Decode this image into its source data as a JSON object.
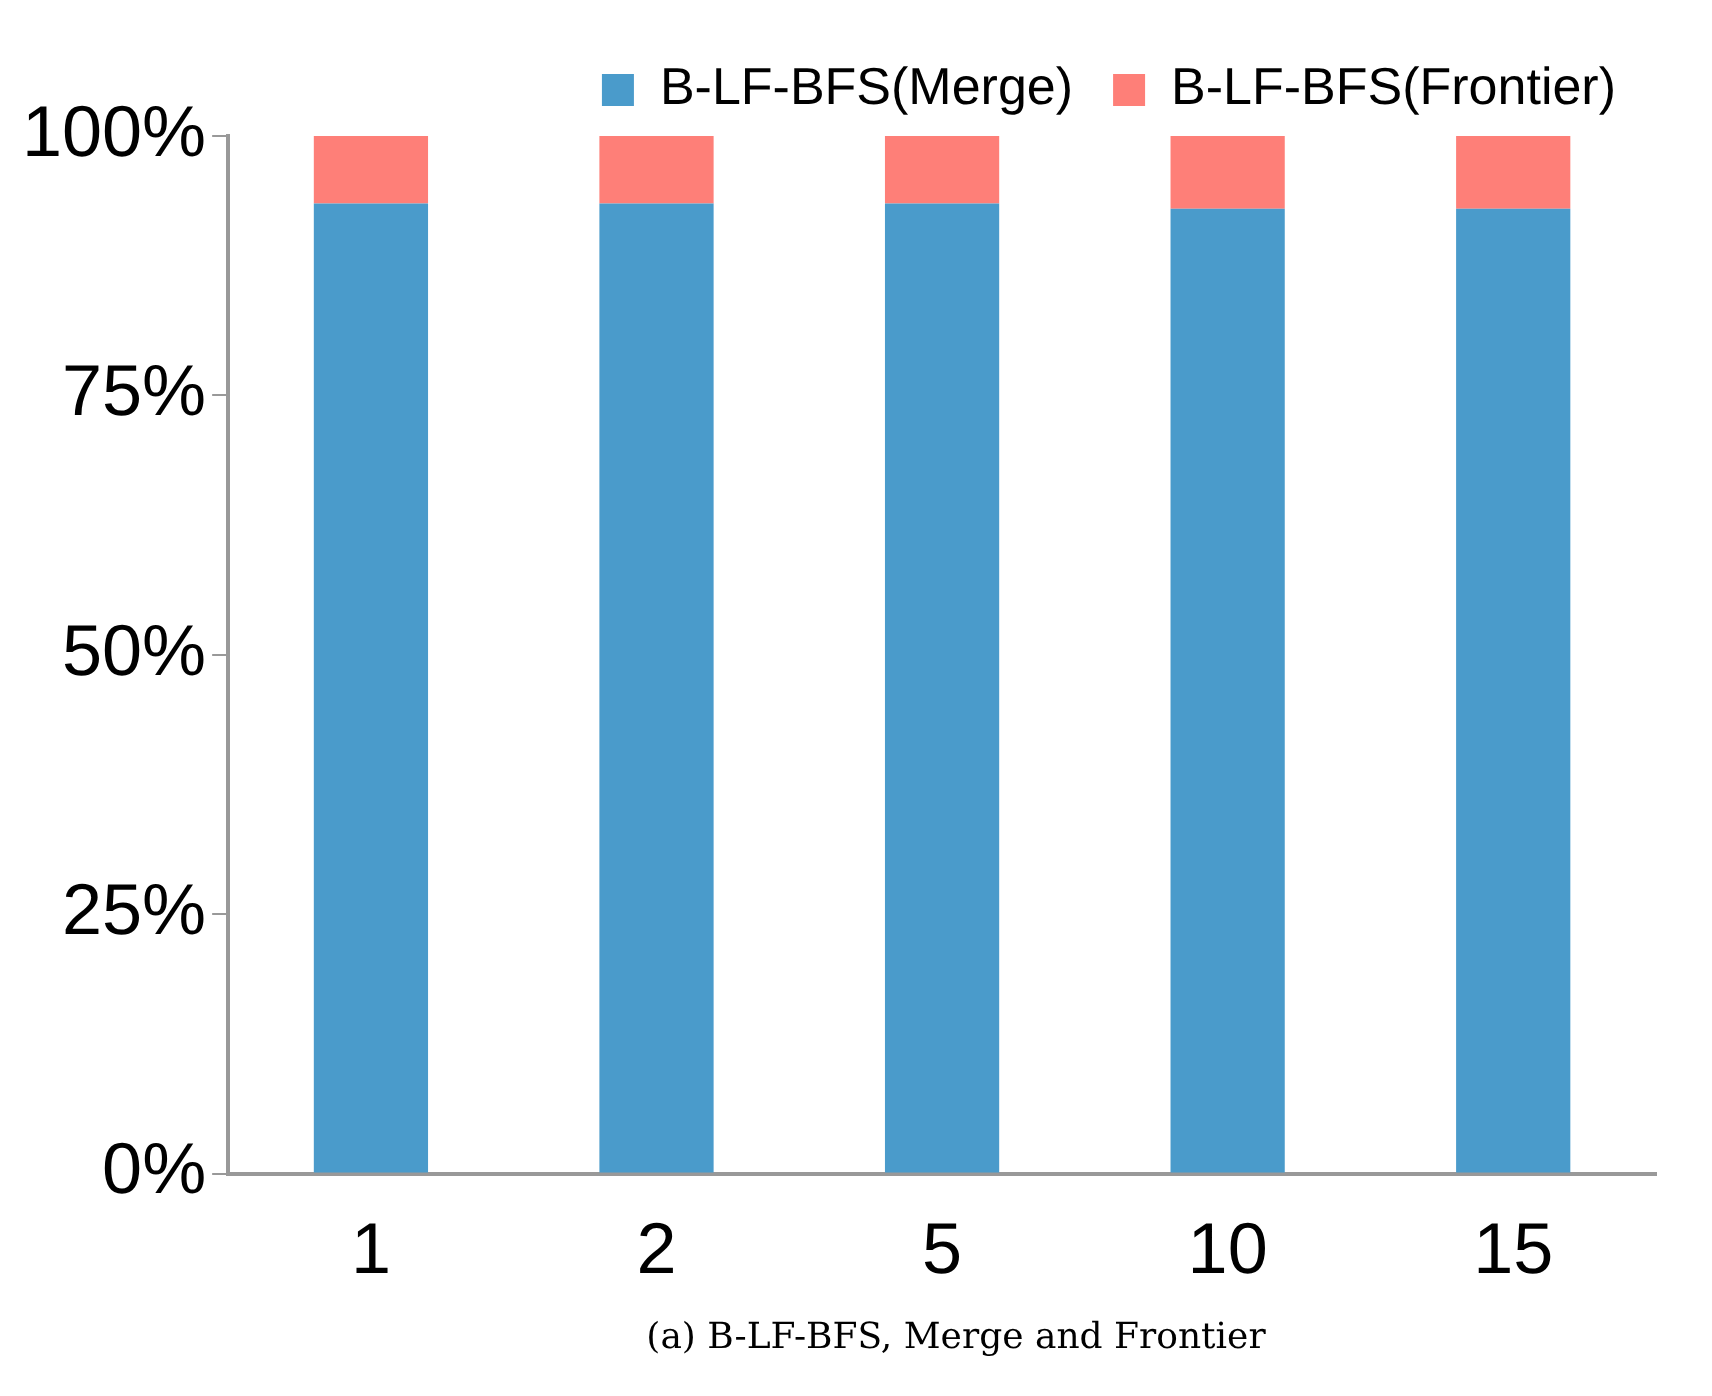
{
  "chart_data": {
    "type": "bar",
    "stacked": true,
    "categories": [
      "1",
      "2",
      "5",
      "10",
      "15"
    ],
    "series": [
      {
        "name": "B-LF-BFS(Merge)",
        "color": "#4a9bcb",
        "values": [
          93.5,
          93.5,
          93.5,
          93,
          93
        ]
      },
      {
        "name": "B-LF-BFS(Frontier)",
        "color": "#fe7f78",
        "values": [
          6.5,
          6.5,
          6.5,
          7,
          7
        ]
      }
    ],
    "ylim": [
      0,
      100
    ],
    "yticks": [
      {
        "value": 0,
        "label": "0%"
      },
      {
        "value": 25,
        "label": "25%"
      },
      {
        "value": 50,
        "label": "50%"
      },
      {
        "value": 75,
        "label": "75%"
      },
      {
        "value": 100,
        "label": "100%"
      }
    ],
    "grid": false,
    "legend": "top",
    "annotations": [
      "(a) B-LF-BFS, Merge and Frontier"
    ]
  }
}
